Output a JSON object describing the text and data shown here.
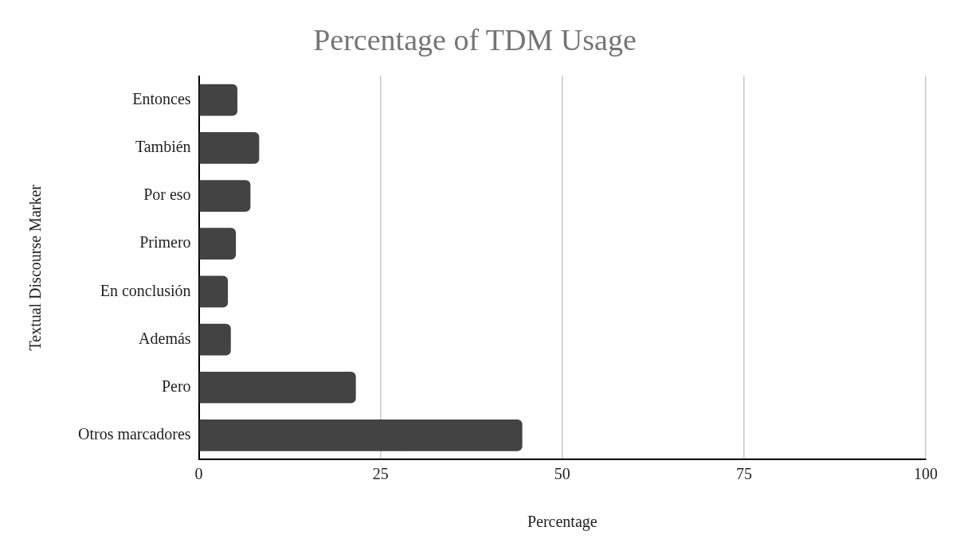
{
  "chart_data": {
    "type": "bar",
    "orientation": "horizontal",
    "title": "Percentage of TDM Usage",
    "xlabel": "Percentage",
    "ylabel": "Textual Discourse Marker",
    "categories": [
      "Entonces",
      "También",
      "Por eso",
      "Primero",
      "En conclusión",
      "Además",
      "Pero",
      "Otros marcadores"
    ],
    "values": [
      5.3,
      8.3,
      7.1,
      5.1,
      4.0,
      4.4,
      21.6,
      44.5
    ],
    "color": "#434343",
    "xlim": [
      0,
      100
    ],
    "xticks": [
      0,
      25,
      50,
      75,
      100
    ],
    "grid": "x",
    "legend": false
  }
}
